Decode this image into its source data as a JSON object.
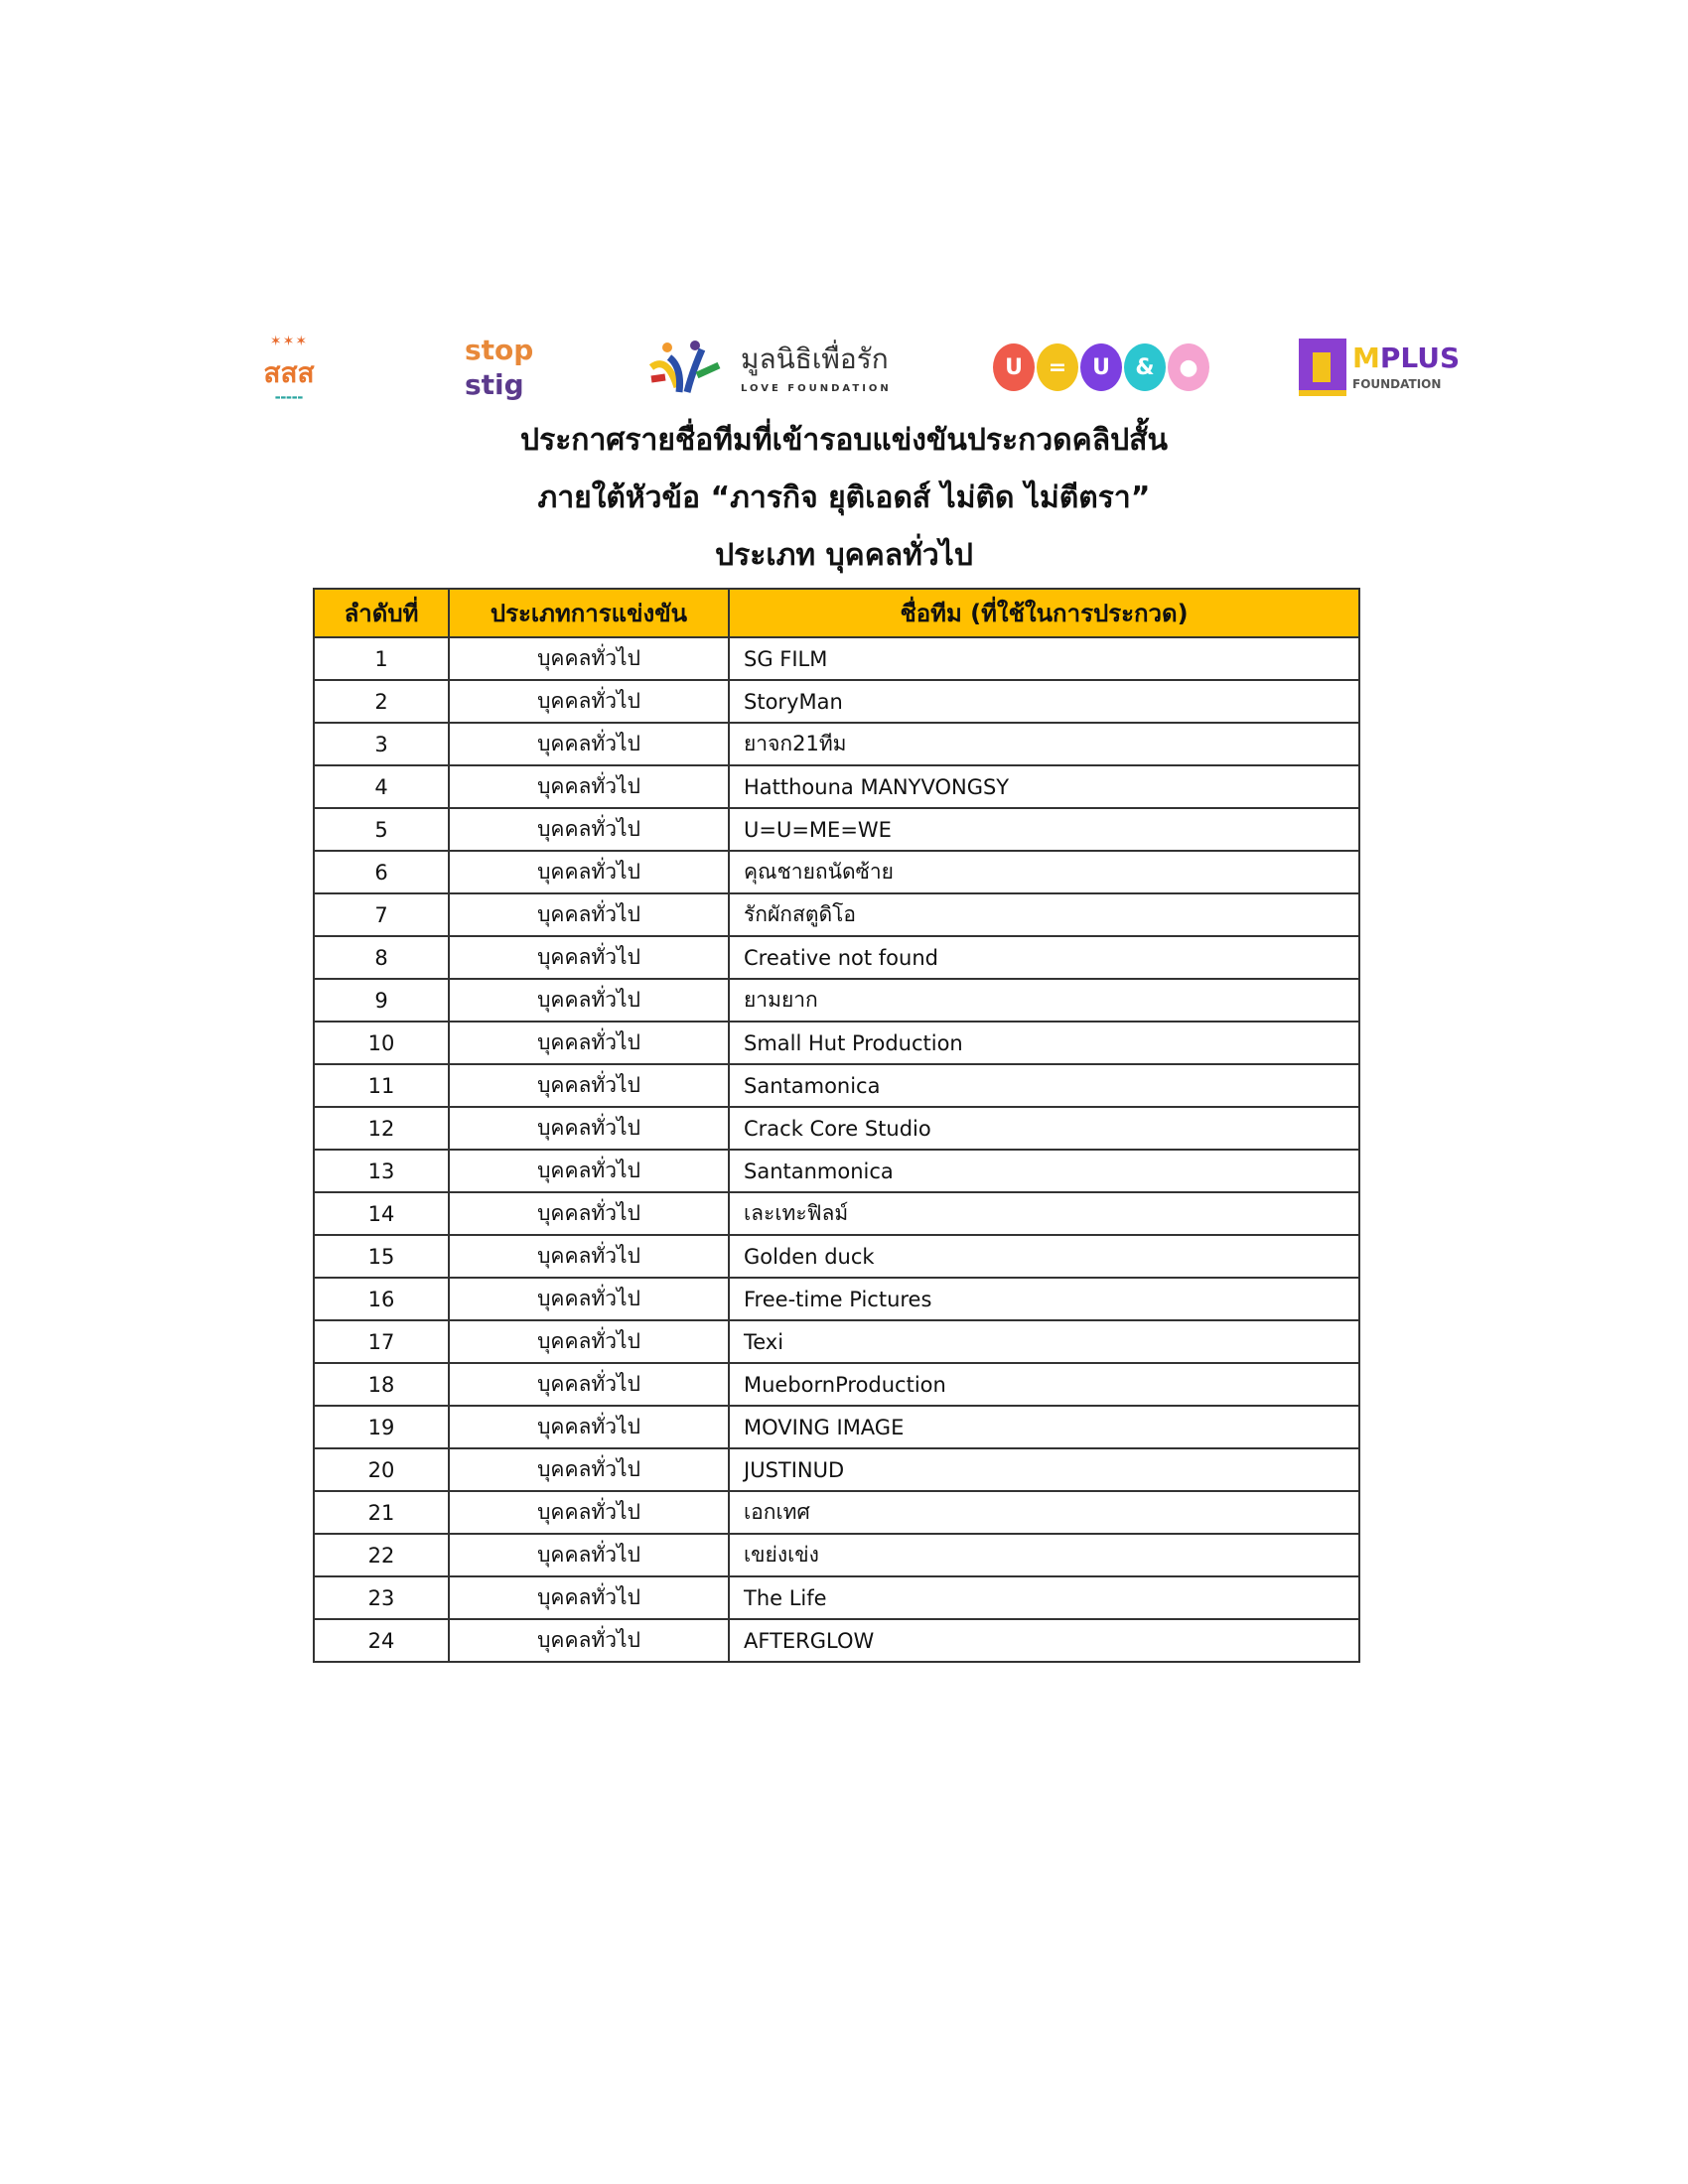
{
  "logos": {
    "thaihealth": "สสส",
    "stopstig": [
      "stop",
      "stig"
    ],
    "love_foundation": {
      "thai": "มูลนิธิเพื่อรัก",
      "english": "LOVE FOUNDATION"
    },
    "uequalsu": [
      "U",
      "=",
      "U",
      "&",
      ""
    ],
    "mplus": {
      "name_m": "M",
      "name_rest": "PLUS",
      "sub": "FOUNDATION"
    }
  },
  "title_lines": [
    "ประกาศรายชื่อทีมที่เข้ารอบแข่งขันประกวดคลิปสั้น",
    "ภายใต้หัวข้อ “ภารกิจ ยุติเอดส์ ไม่ติด ไม่ตีตรา”",
    "ประเภท บุคคลทั่วไป"
  ],
  "table": {
    "headers": [
      "ลำดับที่",
      "ประเภทการแข่งขัน",
      "ชื่อทีม (ที่ใช้ในการประกวด)"
    ],
    "header_color": "#ffc000",
    "rows": [
      [
        "1",
        "บุคคลทั่วไป",
        "SG FILM"
      ],
      [
        "2",
        "บุคคลทั่วไป",
        "StoryMan"
      ],
      [
        "3",
        "บุคคลทั่วไป",
        "ยาจก21ทีม"
      ],
      [
        "4",
        "บุคคลทั่วไป",
        "Hatthouna MANYVONGSY"
      ],
      [
        "5",
        "บุคคลทั่วไป",
        "U=U=ME=WE"
      ],
      [
        "6",
        "บุคคลทั่วไป",
        "คุณชายถนัดซ้าย"
      ],
      [
        "7",
        "บุคคลทั่วไป",
        "รักผักสตูดิโอ"
      ],
      [
        "8",
        "บุคคลทั่วไป",
        "Creative not found"
      ],
      [
        "9",
        "บุคคลทั่วไป",
        "ยามยาก"
      ],
      [
        "10",
        "บุคคลทั่วไป",
        "Small Hut Production"
      ],
      [
        "11",
        "บุคคลทั่วไป",
        "Santamonica"
      ],
      [
        "12",
        "บุคคลทั่วไป",
        "Crack Core Studio"
      ],
      [
        "13",
        "บุคคลทั่วไป",
        "Santanmonica"
      ],
      [
        "14",
        "บุคคลทั่วไป",
        "เละเทะฟิลม์"
      ],
      [
        "15",
        "บุคคลทั่วไป",
        "Golden duck"
      ],
      [
        "16",
        "บุคคลทั่วไป",
        "Free-time Pictures"
      ],
      [
        "17",
        "บุคคลทั่วไป",
        "Texi"
      ],
      [
        "18",
        "บุคคลทั่วไป",
        "MuebornProduction"
      ],
      [
        "19",
        "บุคคลทั่วไป",
        "MOVING IMAGE"
      ],
      [
        "20",
        "บุคคลทั่วไป",
        "JUSTINUD"
      ],
      [
        "21",
        "บุคคลทั่วไป",
        "เอกเทศ"
      ],
      [
        "22",
        "บุคคลทั่วไป",
        "เขย่งเข่ง"
      ],
      [
        "23",
        "บุคคลทั่วไป",
        "The Life"
      ],
      [
        "24",
        "บุคคลทั่วไป",
        "AFTERGLOW"
      ]
    ]
  }
}
